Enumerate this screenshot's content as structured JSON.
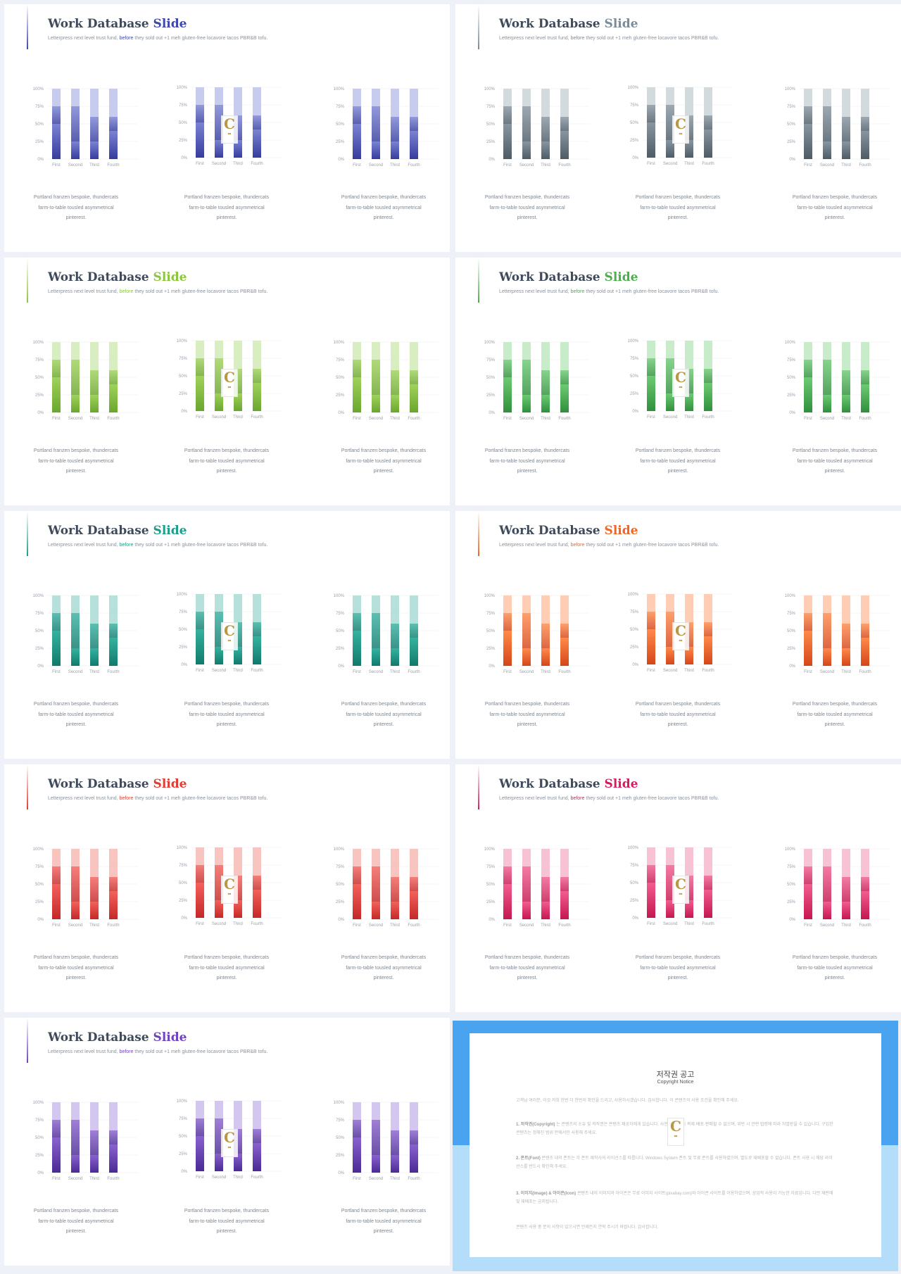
{
  "slide_text": {
    "title_part1": "Work Database",
    "title_part2": "Slide",
    "sub_before": "Letterpress next level trust fund,",
    "sub_accent": "before",
    "sub_after": "they sold out +1 meh gluten-free locavore tacos PBR&B tofu.",
    "caption_line1": "Portland franzen bespoke, thundercats",
    "caption_line2": "farm-to-table tousled asymmetrical",
    "caption_line3": "pinterest."
  },
  "watermark_text": "C",
  "themes": [
    {
      "name": "blue",
      "top": "#353c9e",
      "bottom": "#7b83d3",
      "light": "#c7cbee"
    },
    {
      "name": "slate",
      "top": "#4d5b66",
      "bottom": "#8796a1",
      "light": "#d3dade"
    },
    {
      "name": "lime",
      "top": "#6aa62e",
      "bottom": "#9fd25b",
      "light": "#d9eec0"
    },
    {
      "name": "green",
      "top": "#2f8f3c",
      "bottom": "#6ccb72",
      "light": "#c8ecc9"
    },
    {
      "name": "teal",
      "top": "#117a6d",
      "bottom": "#35b2a0",
      "light": "#b5e1da"
    },
    {
      "name": "orange",
      "top": "#d5461a",
      "bottom": "#ff8a4a",
      "light": "#ffcdb4"
    },
    {
      "name": "red",
      "top": "#c42828",
      "bottom": "#f3625b",
      "light": "#f8c4c0"
    },
    {
      "name": "pink",
      "top": "#c5174f",
      "bottom": "#f25d8f",
      "light": "#f6c2d4"
    },
    {
      "name": "purple",
      "top": "#4a2a94",
      "bottom": "#8a62cf",
      "light": "#d4c7ef"
    }
  ],
  "title_accent_colors": [
    "#3c47b0",
    "#7a8c99",
    "#8cc63f",
    "#4cae4c",
    "#1e9d8b",
    "#f26522",
    "#e03c31",
    "#d81b60",
    "#6f42c1"
  ],
  "chart_data": {
    "type": "bar",
    "stacked": true,
    "categories": [
      "First",
      "Second",
      "Third",
      "Fourth"
    ],
    "y_tick_labels": [
      "0%",
      "25%",
      "50%",
      "75%",
      "100%"
    ],
    "ylim": [
      0,
      100
    ],
    "grid": true,
    "series": [
      {
        "values": [
          50,
          25,
          25,
          40
        ]
      },
      {
        "values": [
          25,
          50,
          35,
          20
        ]
      },
      {
        "values": [
          25,
          25,
          40,
          40
        ]
      }
    ]
  },
  "copyright": {
    "title": "저작권 공고",
    "subtitle": "Copyright Notice",
    "intro": "고객님 여러분, 이것 저희 한번 더 한번의 확인을 드리고, 사용하시겠습니다. 감사합니다. 이 콘텐츠의 사용 조건을 확인해 주세요.",
    "p1_head": "1. 저작권(Copyright)",
    "p1_body": "는 콘텐츠의 소유 및 저작권은 콘텐츠 제공자에게 있습니다. 사전 승낙 없이 복제·배포·판매할 수 없으며, 위반 시 관련 법령에 따라 처벌받을 수 있습니다. 구입한 콘텐츠는 정해진 범위 안에서만 사용해 주세요.",
    "p2_head": "2. 폰트(Font)",
    "p2_body": "콘텐츠 내의 폰트는 각 폰트 제작사의 라이선스를 따릅니다. Windows System 폰트 및 무료 폰트를 사용하였으며, 별도로 재배포할 수 없습니다. 폰트 사용 시 해당 라이선스를 반드시 확인해 주세요.",
    "p3_head": "3. 이미지(Image) & 아이콘(Icon)",
    "p3_body": "콘텐츠 내의 이미지와 아이콘은 무료 이미지 사이트(pixabay.com)와 아이콘 사이트를 이용하였으며, 상업적 사용이 가능한 자료입니다. 다만 재판매 및 재배포는 금지됩니다.",
    "outro": "콘텐츠 사용 중 문의 사항이 있으시면 언제든지 연락 주시기 바랍니다. 감사합니다."
  }
}
